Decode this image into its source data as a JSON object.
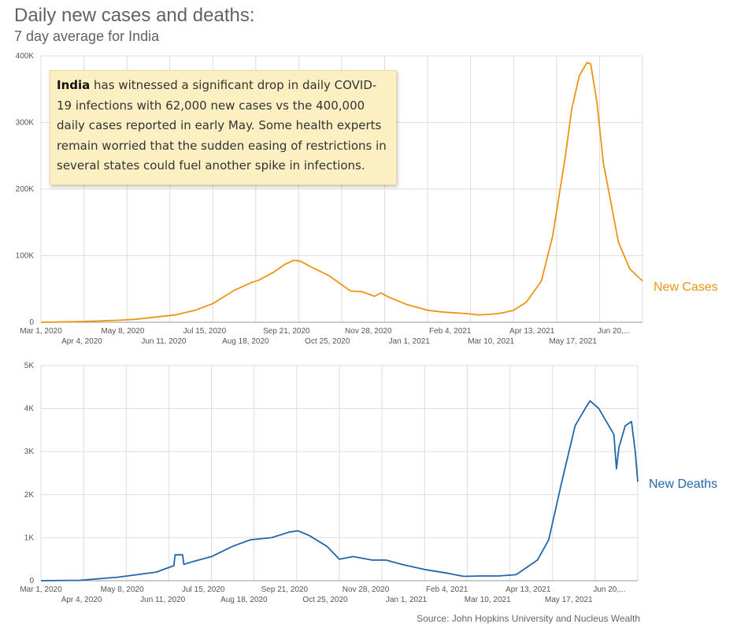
{
  "title": "Daily new cases and deaths:",
  "subtitle": "7 day average for India",
  "annotation": {
    "bold": "India",
    "text": " has witnessed a significant drop in daily COVID-19 infections with 62,000 new cases vs the 400,000 daily cases reported in early May. Some health experts remain worried that the sudden easing of restrictions in several states could fuel another spike in infections."
  },
  "source": "Source: John Hopkins University and Nucleus Wealth",
  "colors": {
    "cases": "#ee9413",
    "deaths": "#2166ac",
    "grid": "#dddddd",
    "axis": "#999999"
  },
  "x_ticks_top": [
    "Mar 1, 2020",
    "May 8, 2020",
    "Jul 15, 2020",
    "Sep 21, 2020",
    "Nov 28, 2020",
    "Feb 4, 2021",
    "Apr 13, 2021",
    "Jun 20,..."
  ],
  "x_ticks_bottom": [
    "Apr 4, 2020",
    "Jun 11, 2020",
    "Aug 18, 2020",
    "Oct 25, 2020",
    "Jan 1, 2021",
    "Mar 10, 2021",
    "May 17, 2021"
  ],
  "chart_data": [
    {
      "type": "line",
      "series": [
        {
          "name": "New Cases",
          "x": [
            "2020-03-01",
            "2020-04-01",
            "2020-05-01",
            "2020-05-15",
            "2020-06-01",
            "2020-06-15",
            "2020-07-01",
            "2020-07-15",
            "2020-08-01",
            "2020-08-15",
            "2020-08-20",
            "2020-09-01",
            "2020-09-10",
            "2020-09-17",
            "2020-09-22",
            "2020-10-01",
            "2020-10-15",
            "2020-11-01",
            "2020-11-10",
            "2020-11-20",
            "2020-11-25",
            "2020-12-01",
            "2020-12-15",
            "2021-01-01",
            "2021-01-15",
            "2021-02-01",
            "2021-02-10",
            "2021-02-20",
            "2021-03-01",
            "2021-03-10",
            "2021-03-20",
            "2021-04-01",
            "2021-04-10",
            "2021-04-20",
            "2021-04-25",
            "2021-05-01",
            "2021-05-07",
            "2021-05-10",
            "2021-05-15",
            "2021-05-20",
            "2021-06-01",
            "2021-06-10",
            "2021-06-20"
          ],
          "y": [
            0,
            1000,
            3000,
            4500,
            8000,
            11000,
            18000,
            28000,
            48000,
            60000,
            63000,
            75000,
            87000,
            93000,
            92000,
            83000,
            70000,
            47000,
            46000,
            39000,
            44000,
            38000,
            27000,
            18000,
            15000,
            13000,
            11000,
            12000,
            14000,
            18000,
            30000,
            62000,
            130000,
            250000,
            320000,
            370000,
            390000,
            388000,
            330000,
            240000,
            120000,
            80000,
            62000
          ]
        }
      ],
      "xlim": [
        "2020-03-01",
        "2021-06-20"
      ],
      "ylim": [
        0,
        400000
      ],
      "y_ticks": [
        "0",
        "100K",
        "200K",
        "300K",
        "400K"
      ],
      "grid": true
    },
    {
      "type": "line",
      "series": [
        {
          "name": "New Deaths",
          "x": [
            "2020-03-01",
            "2020-04-01",
            "2020-05-01",
            "2020-06-01",
            "2020-06-15",
            "2020-06-16",
            "2020-06-22",
            "2020-06-23",
            "2020-07-01",
            "2020-07-15",
            "2020-08-01",
            "2020-08-15",
            "2020-09-01",
            "2020-09-15",
            "2020-09-22",
            "2020-10-01",
            "2020-10-15",
            "2020-10-25",
            "2020-11-05",
            "2020-11-20",
            "2020-12-01",
            "2020-12-15",
            "2021-01-01",
            "2021-01-20",
            "2021-02-01",
            "2021-02-15",
            "2021-03-01",
            "2021-03-15",
            "2021-04-01",
            "2021-04-10",
            "2021-04-20",
            "2021-05-01",
            "2021-05-10",
            "2021-05-13",
            "2021-05-20",
            "2021-06-01",
            "2021-06-03",
            "2021-06-05",
            "2021-06-10",
            "2021-06-15",
            "2021-06-18",
            "2021-06-20"
          ],
          "y": [
            0,
            10,
            80,
            200,
            350,
            600,
            600,
            380,
            450,
            560,
            800,
            950,
            1000,
            1130,
            1160,
            1050,
            800,
            500,
            560,
            480,
            480,
            370,
            260,
            170,
            100,
            110,
            110,
            140,
            480,
            950,
            2250,
            3600,
            4050,
            4180,
            4000,
            3400,
            2600,
            3100,
            3600,
            3700,
            3000,
            2300
          ]
        }
      ],
      "xlim": [
        "2020-03-01",
        "2021-06-20"
      ],
      "ylim": [
        0,
        5000
      ],
      "y_ticks": [
        "0",
        "1K",
        "2K",
        "3K",
        "4K",
        "5K"
      ],
      "grid": true
    }
  ]
}
